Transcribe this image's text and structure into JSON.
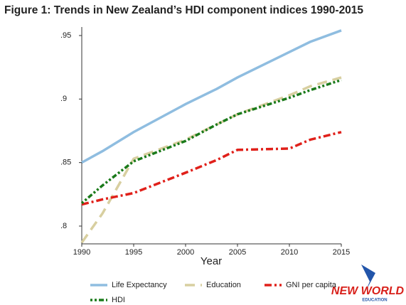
{
  "chart_data": {
    "type": "line",
    "title": "Figure 1: Trends in New Zealand’s HDI component indices 1990-2015",
    "x_label": "Year",
    "x": [
      1990,
      1992,
      1995,
      2000,
      2003,
      2005,
      2010,
      2012,
      2015
    ],
    "series": [
      {
        "name": "Life Expectancy",
        "color": "#8fbde0",
        "dash": "solid",
        "values": [
          0.85,
          0.859,
          0.874,
          0.896,
          0.908,
          0.917,
          0.937,
          0.945,
          0.954
        ]
      },
      {
        "name": "Education",
        "color": "#d8cfa0",
        "dash": "long",
        "values": [
          0.787,
          0.81,
          0.853,
          0.868,
          0.88,
          0.888,
          0.903,
          0.91,
          0.917
        ]
      },
      {
        "name": "GNI per capita",
        "color": "#e0201a",
        "dash": "dashdot",
        "values": [
          0.817,
          0.821,
          0.826,
          0.842,
          0.852,
          0.86,
          0.861,
          0.868,
          0.874
        ]
      },
      {
        "name": "HDI",
        "color": "#1a7a1a",
        "dash": "dotdash",
        "values": [
          0.818,
          0.832,
          0.851,
          0.867,
          0.88,
          0.888,
          0.901,
          0.907,
          0.915
        ]
      }
    ],
    "xlim": [
      1990,
      2015
    ],
    "xticks": [
      1990,
      1995,
      2000,
      2005,
      2010,
      2015
    ],
    "ylim": [
      0.786,
      0.9567
    ],
    "yticks": [
      {
        "value": 0.8,
        "label": ".8"
      },
      {
        "value": 0.85,
        "label": ".85"
      },
      {
        "value": 0.9,
        "label": ".9"
      },
      {
        "value": 0.95,
        "label": ".95"
      }
    ],
    "legend": "bottom"
  },
  "logo": {
    "line1": "NEW WORLD",
    "line2": "EDUCATION"
  }
}
